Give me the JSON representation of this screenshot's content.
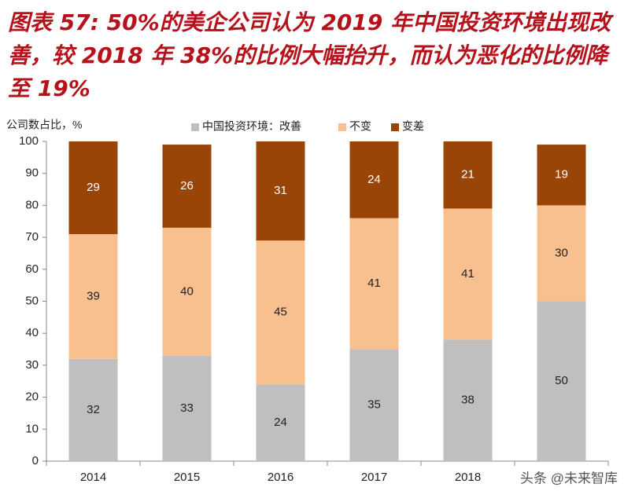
{
  "chart_data": {
    "type": "stacked-bar",
    "title": "图表 57: 50%的美企公司认为 2019 年中国投资环境出现改善，较 2018 年 38%的比例大幅抬升，而认为恶化的比例降至 19%",
    "y_label": "公司数占比，%",
    "categories": [
      "2014",
      "2015",
      "2016",
      "2017",
      "2018",
      null
    ],
    "series": [
      {
        "name": "中国投资环境：改善",
        "color": "#bfbfbf",
        "values": [
          32,
          33,
          24,
          35,
          38,
          50
        ]
      },
      {
        "name": "不变",
        "color": "#f9c08f",
        "values": [
          39,
          40,
          45,
          41,
          41,
          30
        ]
      },
      {
        "name": "变差",
        "color": "#9a4508",
        "values": [
          29,
          26,
          31,
          24,
          21,
          19
        ]
      }
    ],
    "ylim": [
      0,
      100
    ],
    "yticks": [
      0,
      10,
      20,
      30,
      40,
      50,
      60,
      70,
      80,
      90,
      100
    ],
    "data_labels": true,
    "watermark": "头条 @未来智库"
  }
}
